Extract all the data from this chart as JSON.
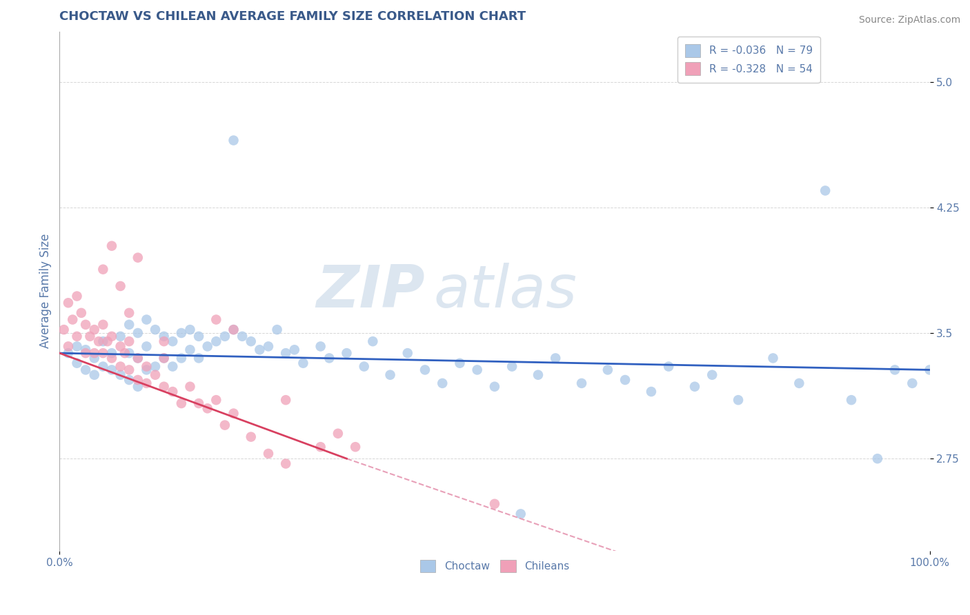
{
  "title": "CHOCTAW VS CHILEAN AVERAGE FAMILY SIZE CORRELATION CHART",
  "source_text": "Source: ZipAtlas.com",
  "ylabel": "Average Family Size",
  "xlim": [
    0,
    1.0
  ],
  "ylim": [
    2.2,
    5.3
  ],
  "yticks": [
    2.75,
    3.5,
    4.25,
    5.0
  ],
  "xticklabels": [
    "0.0%",
    "100.0%"
  ],
  "title_color": "#3a5a8a",
  "title_fontsize": 13,
  "axis_color": "#5a7aaa",
  "watermark_zip": "ZIP",
  "watermark_atlas": "atlas",
  "watermark_color": "#dce6f0",
  "legend_blue_label": "R = -0.036   N = 79",
  "legend_pink_label": "R = -0.328   N = 54",
  "choctaw_color": "#aac8e8",
  "chilean_color": "#f0a0b8",
  "choctaw_line_color": "#3060c0",
  "chilean_line_color": "#d84060",
  "dashed_line_color": "#e8a0b8",
  "source_color": "#888888",
  "choctaw_x": [
    0.01,
    0.02,
    0.02,
    0.03,
    0.03,
    0.04,
    0.04,
    0.05,
    0.05,
    0.06,
    0.06,
    0.07,
    0.07,
    0.08,
    0.08,
    0.08,
    0.09,
    0.09,
    0.09,
    0.1,
    0.1,
    0.1,
    0.11,
    0.11,
    0.12,
    0.12,
    0.13,
    0.13,
    0.14,
    0.14,
    0.15,
    0.15,
    0.16,
    0.16,
    0.17,
    0.18,
    0.19,
    0.2,
    0.21,
    0.22,
    0.23,
    0.24,
    0.25,
    0.26,
    0.27,
    0.28,
    0.3,
    0.31,
    0.33,
    0.35,
    0.36,
    0.38,
    0.4,
    0.42,
    0.44,
    0.46,
    0.48,
    0.5,
    0.52,
    0.55,
    0.57,
    0.6,
    0.63,
    0.65,
    0.68,
    0.7,
    0.73,
    0.75,
    0.78,
    0.82,
    0.85,
    0.88,
    0.91,
    0.94,
    0.96,
    0.98,
    1.0,
    0.2,
    0.53
  ],
  "choctaw_y": [
    3.38,
    3.42,
    3.32,
    3.4,
    3.28,
    3.35,
    3.25,
    3.45,
    3.3,
    3.38,
    3.28,
    3.48,
    3.25,
    3.55,
    3.38,
    3.22,
    3.5,
    3.35,
    3.18,
    3.58,
    3.42,
    3.28,
    3.52,
    3.3,
    3.48,
    3.35,
    3.45,
    3.3,
    3.5,
    3.35,
    3.52,
    3.4,
    3.48,
    3.35,
    3.42,
    3.45,
    3.48,
    3.52,
    3.48,
    3.45,
    3.4,
    3.42,
    3.52,
    3.38,
    3.4,
    3.32,
    3.42,
    3.35,
    3.38,
    3.3,
    3.45,
    3.25,
    3.38,
    3.28,
    3.2,
    3.32,
    3.28,
    3.18,
    3.3,
    3.25,
    3.35,
    3.2,
    3.28,
    3.22,
    3.15,
    3.3,
    3.18,
    3.25,
    3.1,
    3.35,
    3.2,
    4.35,
    3.1,
    2.75,
    3.28,
    3.2,
    3.28,
    4.65,
    2.42
  ],
  "chilean_x": [
    0.005,
    0.01,
    0.01,
    0.015,
    0.02,
    0.02,
    0.025,
    0.03,
    0.03,
    0.035,
    0.04,
    0.04,
    0.045,
    0.05,
    0.05,
    0.055,
    0.06,
    0.06,
    0.07,
    0.07,
    0.075,
    0.08,
    0.08,
    0.09,
    0.09,
    0.1,
    0.1,
    0.11,
    0.12,
    0.12,
    0.13,
    0.14,
    0.15,
    0.16,
    0.17,
    0.18,
    0.19,
    0.2,
    0.22,
    0.24,
    0.26,
    0.3,
    0.32,
    0.34,
    0.12,
    0.18,
    0.2,
    0.26,
    0.05,
    0.07,
    0.08,
    0.09,
    0.06,
    0.5
  ],
  "chilean_y": [
    3.52,
    3.68,
    3.42,
    3.58,
    3.72,
    3.48,
    3.62,
    3.55,
    3.38,
    3.48,
    3.52,
    3.38,
    3.45,
    3.55,
    3.38,
    3.45,
    3.48,
    3.35,
    3.42,
    3.3,
    3.38,
    3.45,
    3.28,
    3.35,
    3.22,
    3.3,
    3.2,
    3.25,
    3.18,
    3.35,
    3.15,
    3.08,
    3.18,
    3.08,
    3.05,
    3.1,
    2.95,
    3.02,
    2.88,
    2.78,
    2.72,
    2.82,
    2.9,
    2.82,
    3.45,
    3.58,
    3.52,
    3.1,
    3.88,
    3.78,
    3.62,
    3.95,
    4.02,
    2.48
  ],
  "choctaw_trend": [
    0.0,
    3.38,
    1.0,
    3.28
  ],
  "chilean_trend_solid": [
    0.0,
    3.38,
    0.33,
    2.75
  ],
  "chilean_trend_dashed": [
    0.33,
    2.75,
    1.0,
    1.55
  ]
}
